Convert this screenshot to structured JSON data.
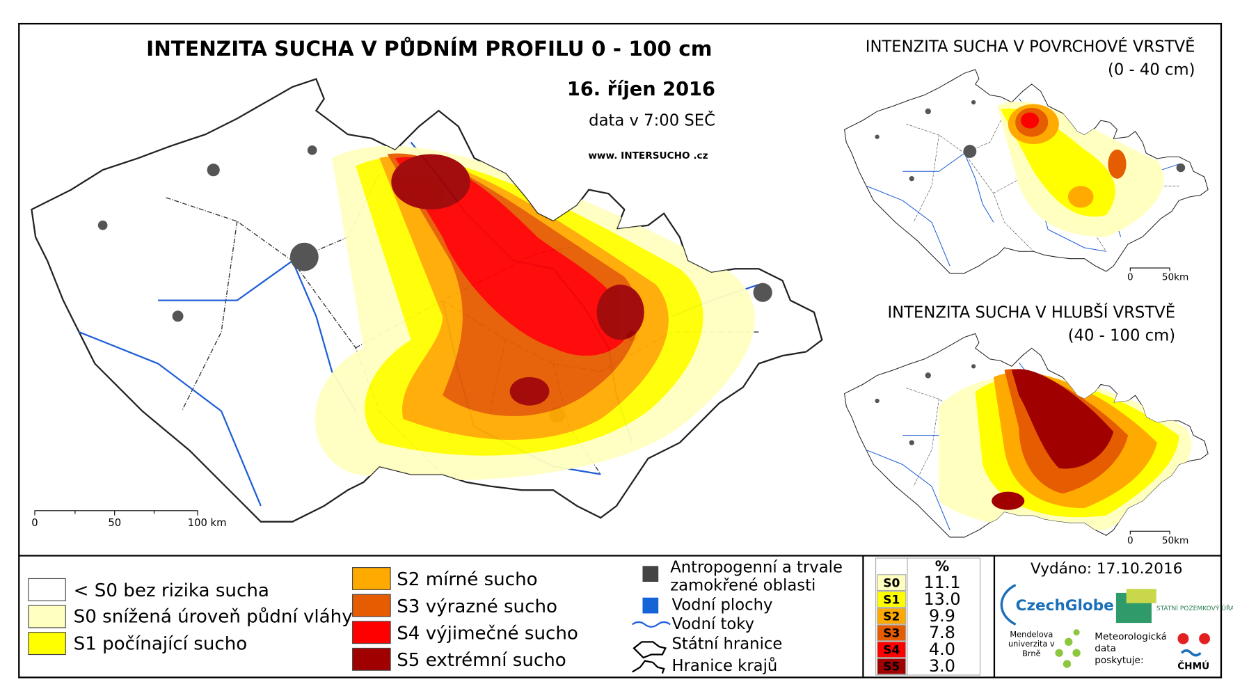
{
  "main": {
    "title": "INTENZITA SUCHA V PŮDNÍM PROFILU 0 - 100 cm",
    "date": "16. říjen 2016",
    "data_time": "data v 7:00 SEČ",
    "website": "www. INTERSUCHO .cz",
    "scale": [
      "0",
      "50",
      "100 km"
    ]
  },
  "inset_surface": {
    "title": "INTENZITA SUCHA V POVRCHOVÉ VRSTVĚ",
    "subtitle": "(0 - 40 cm)",
    "scale": [
      "0",
      "50km"
    ]
  },
  "inset_deep": {
    "title": "INTENZITA SUCHA V HLUBŠÍ VRSTVĚ",
    "subtitle": "(40 - 100 cm)",
    "scale": [
      "0",
      "50km"
    ]
  },
  "legend": {
    "classes": [
      {
        "label": "< S0 bez rizika sucha",
        "color": "#ffffff"
      },
      {
        "label": "S0 snížená úroveň půdní vláhy",
        "color": "#ffffc0"
      },
      {
        "label": "S1 počínající sucho",
        "color": "#ffff00"
      },
      {
        "label": "S2 mírné sucho",
        "color": "#ffaa00"
      },
      {
        "label": "S3 výrazné sucho",
        "color": "#e65c00"
      },
      {
        "label": "S4 výjimečné sucho",
        "color": "#ff0000"
      },
      {
        "label": "S5 extrémní sucho",
        "color": "#a00000"
      }
    ],
    "features": [
      "Antropogenní a trvale zamokřené oblasti",
      "Vodní plochy",
      "Vodní toky",
      "Státní hranice",
      "Hranice krajů"
    ]
  },
  "table": {
    "header": "%",
    "rows": [
      [
        "S0",
        "11.1"
      ],
      [
        "S1",
        "13.0"
      ],
      [
        "S2",
        "9.9"
      ],
      [
        "S3",
        "7.8"
      ],
      [
        "S4",
        "4.0"
      ],
      [
        "S5",
        "3.0"
      ]
    ]
  },
  "issued": "Vydáno: 17.10.2016",
  "logos": {
    "czechglobe": "CzechGlobe",
    "spu": "STÁTNÍ POZEMKOVÝ ÚŘAD",
    "mendel": "Mendelova univerzita v Brně",
    "chmu_note": "Meteorologická data poskytuje:",
    "chmu": "ČHMÚ"
  }
}
